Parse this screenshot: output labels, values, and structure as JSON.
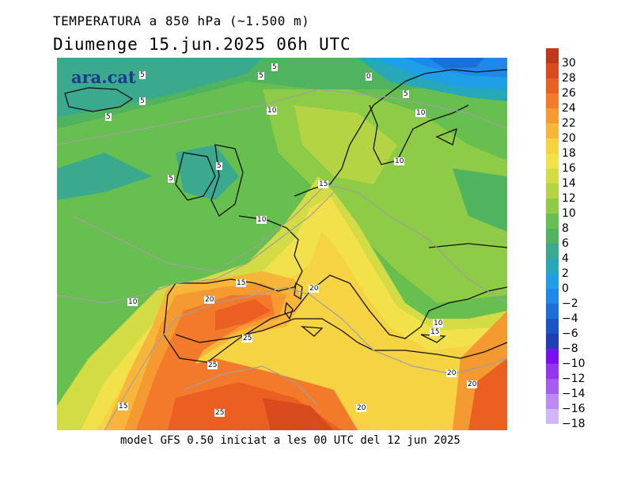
{
  "header": {
    "title_line1": "TEMPERATURA a 850 hPa (~1.500 m)",
    "title_line2": "Diumenge  15.jun.2025 06h UTC"
  },
  "map": {
    "watermark": "ara.cat",
    "isotherm_labels": [
      {
        "text": "5"
      },
      {
        "text": "5"
      },
      {
        "text": "5"
      },
      {
        "text": "5"
      },
      {
        "text": "5"
      },
      {
        "text": "5"
      },
      {
        "text": "5"
      },
      {
        "text": "0"
      },
      {
        "text": "5"
      },
      {
        "text": "10"
      },
      {
        "text": "10"
      },
      {
        "text": "10"
      },
      {
        "text": "15"
      },
      {
        "text": "10"
      },
      {
        "text": "15"
      },
      {
        "text": "20"
      },
      {
        "text": "20"
      },
      {
        "text": "10"
      },
      {
        "text": "10"
      },
      {
        "text": "15"
      },
      {
        "text": "25"
      },
      {
        "text": "25"
      },
      {
        "text": "20"
      },
      {
        "text": "20"
      },
      {
        "text": "15"
      },
      {
        "text": "25"
      },
      {
        "text": "20"
      }
    ]
  },
  "legend": {
    "items": [
      {
        "label": "30",
        "color": "#c0391b"
      },
      {
        "label": "28",
        "color": "#d94a1e"
      },
      {
        "label": "26",
        "color": "#ec5f23"
      },
      {
        "label": "24",
        "color": "#f27a2a"
      },
      {
        "label": "22",
        "color": "#f59a31"
      },
      {
        "label": "20",
        "color": "#f7b63a"
      },
      {
        "label": "18",
        "color": "#f6d343"
      },
      {
        "label": "16",
        "color": "#f3e14c"
      },
      {
        "label": "14",
        "color": "#d3dc44"
      },
      {
        "label": "12",
        "color": "#b5d444"
      },
      {
        "label": "10",
        "color": "#8ecb46"
      },
      {
        "label": "8",
        "color": "#66bf4f"
      },
      {
        "label": "6",
        "color": "#4fb35f"
      },
      {
        "label": "4",
        "color": "#3aa98d"
      },
      {
        "label": "2",
        "color": "#27a8b8"
      },
      {
        "label": "0",
        "color": "#1e9fe6"
      },
      {
        "label": "−2",
        "color": "#1f88e8"
      },
      {
        "label": "−4",
        "color": "#1c6fd9"
      },
      {
        "label": "−6",
        "color": "#1a55c8"
      },
      {
        "label": "−8",
        "color": "#1f3fb5"
      },
      {
        "label": "−10",
        "color": "#7a10f2"
      },
      {
        "label": "−12",
        "color": "#9436ef"
      },
      {
        "label": "−14",
        "color": "#a65cf0"
      },
      {
        "label": "−16",
        "color": "#bd8af3"
      },
      {
        "label": "−18",
        "color": "#d3b6f6"
      }
    ]
  },
  "footer": {
    "text": "model GFS 0.50 iniciat a les 00 UTC del 12 jun 2025"
  }
}
